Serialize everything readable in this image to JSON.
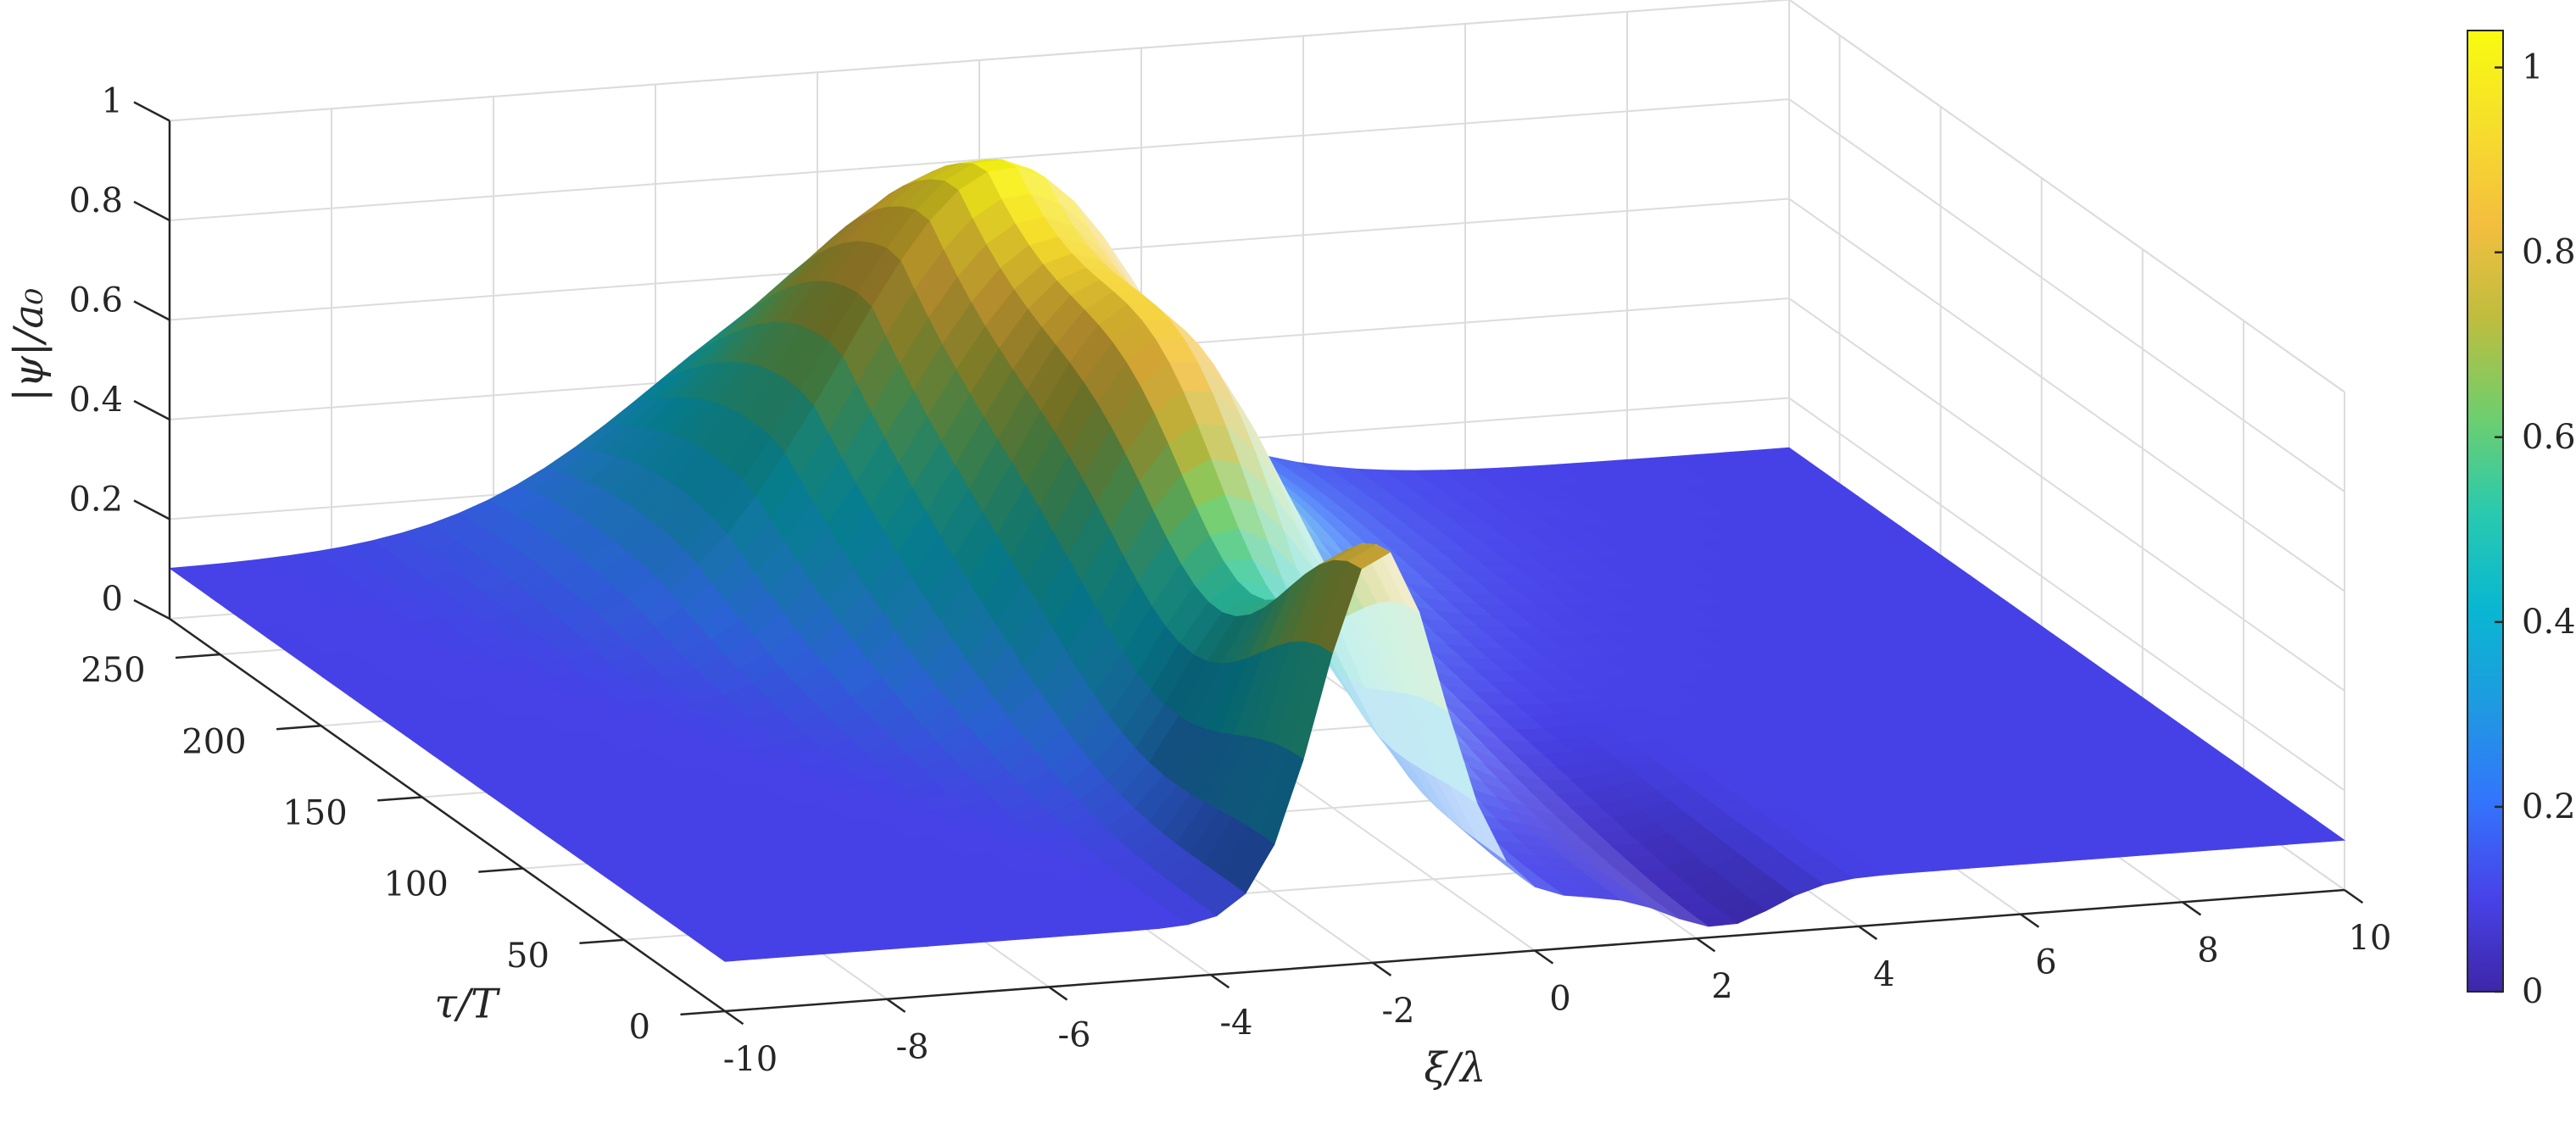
{
  "chart_data": {
    "type": "surface",
    "title": "",
    "xlabel": "ξ/λ",
    "ylabel": "τ/T",
    "zlabel": "|ψ|/a₀",
    "xlim": [
      -10,
      10
    ],
    "ylim": [
      0,
      275
    ],
    "zlim": [
      0,
      1
    ],
    "x_ticks": [
      "-10",
      "-8",
      "-6",
      "-4",
      "-2",
      "0",
      "2",
      "4",
      "6",
      "8",
      "10"
    ],
    "y_ticks": [
      "0",
      "50",
      "100",
      "150",
      "200",
      "250"
    ],
    "z_ticks": [
      "0",
      "0.2",
      "0.4",
      "0.6",
      "0.8",
      "1"
    ],
    "colorbar": {
      "range": [
        0,
        1.04
      ],
      "ticks": [
        "0",
        "0.2",
        "0.4",
        "0.6",
        "0.8",
        "1"
      ],
      "colormap": "parula"
    },
    "grid": true,
    "peaks": [
      {
        "xi": -1.9,
        "tau": 0,
        "amplitude": 0.83
      },
      {
        "xi": -1.5,
        "tau": 200,
        "amplitude": 1.0
      }
    ],
    "background_amplitude": 0.1
  }
}
